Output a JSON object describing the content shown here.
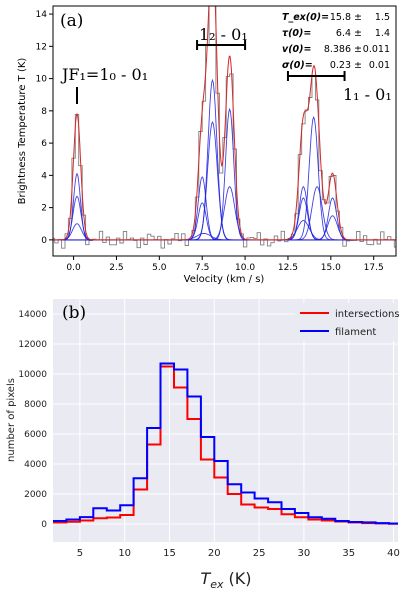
{
  "colors": {
    "panel_a_background": "#ffffff",
    "panel_b_background": "#eaeaf2",
    "observed": "#7f7f7f",
    "total_fit": "#d62728",
    "components": "#1f1fdf",
    "zero_line": "#cc2222",
    "intersections": "#ff0000",
    "filament": "#0000ff"
  },
  "chart_data": [
    {
      "type": "line",
      "panel_label": "(a)",
      "xlabel": "Velocity (km / s)",
      "ylabel": "Brightness Temperature T (K)",
      "xlim": [
        -1.2,
        18.8
      ],
      "ylim": [
        -1,
        14.5
      ],
      "xticks": [
        0.0,
        2.5,
        5.0,
        7.5,
        10.0,
        12.5,
        15.0,
        17.5
      ],
      "xtick_labels": [
        "0.0",
        "2.5",
        "5.0",
        "7.5",
        "10.0",
        "12.5",
        "15.0",
        "17.5"
      ],
      "yticks": [
        0,
        2,
        4,
        6,
        8,
        10,
        12,
        14
      ],
      "ytick_labels": [
        "0",
        "2",
        "4",
        "6",
        "8",
        "10",
        "12",
        "14"
      ],
      "grid": false,
      "channel_width": 0.2,
      "noise_amplitude": 0.55,
      "hyperfine_groups": [
        {
          "label": "JF₁=1₀ - 0₁",
          "bracket_range": [
            0.2,
            0.2
          ]
        },
        {
          "label": "1₂ - 0₁",
          "bracket_range": [
            7.2,
            10.0
          ]
        },
        {
          "label": "1₁ - 0₁",
          "bracket_range": [
            12.5,
            15.8
          ]
        }
      ],
      "components": [
        {
          "center": 0.2,
          "amplitude": 4.1,
          "sigma": 0.2
        },
        {
          "center": 0.2,
          "amplitude": 2.7,
          "sigma": 0.23
        },
        {
          "center": 0.2,
          "amplitude": 1.0,
          "sigma": 0.26
        },
        {
          "center": 7.5,
          "amplitude": 3.9,
          "sigma": 0.23
        },
        {
          "center": 7.5,
          "amplitude": 2.3,
          "sigma": 0.24
        },
        {
          "center": 7.6,
          "amplitude": 0.4,
          "sigma": 0.4
        },
        {
          "center": 8.1,
          "amplitude": 9.9,
          "sigma": 0.26
        },
        {
          "center": 8.1,
          "amplitude": 7.3,
          "sigma": 0.28
        },
        {
          "center": 9.1,
          "amplitude": 8.1,
          "sigma": 0.24
        },
        {
          "center": 9.1,
          "amplitude": 3.3,
          "sigma": 0.3
        },
        {
          "center": 13.4,
          "amplitude": 3.3,
          "sigma": 0.24
        },
        {
          "center": 13.4,
          "amplitude": 2.6,
          "sigma": 0.25
        },
        {
          "center": 13.4,
          "amplitude": 1.2,
          "sigma": 0.34
        },
        {
          "center": 14.0,
          "amplitude": 7.6,
          "sigma": 0.26
        },
        {
          "center": 14.2,
          "amplitude": 3.3,
          "sigma": 0.3
        },
        {
          "center": 15.1,
          "amplitude": 2.6,
          "sigma": 0.24
        },
        {
          "center": 15.1,
          "amplitude": 1.5,
          "sigma": 0.28
        }
      ],
      "fit_parameters": [
        {
          "name": "T_ex(0)=",
          "value": "15.8 ±",
          "error": "1.5"
        },
        {
          "name": "τ(0)=",
          "value": "6.4 ±",
          "error": "1.4"
        },
        {
          "name": "v(0)=",
          "value": "8.386 ±",
          "error": "0.011"
        },
        {
          "name": "σ(0)=",
          "value": "0.23 ±",
          "error": "0.01"
        }
      ]
    },
    {
      "type": "line",
      "panel_label": "(b)",
      "xlabel": "T_ex (K)",
      "ylabel": "number of pixels",
      "xlim": [
        2,
        40.5
      ],
      "ylim": [
        -1200,
        15000
      ],
      "xticks": [
        5,
        10,
        15,
        20,
        25,
        30,
        35,
        40
      ],
      "xtick_labels": [
        "5",
        "10",
        "15",
        "20",
        "25",
        "30",
        "35",
        "40"
      ],
      "yticks": [
        0,
        2000,
        4000,
        6000,
        8000,
        10000,
        12000,
        14000
      ],
      "ytick_labels": [
        "0",
        "2000",
        "4000",
        "6000",
        "8000",
        "10000",
        "12000",
        "14000"
      ],
      "grid": true,
      "legend": {
        "placement": "top-right"
      },
      "bin_edges": [
        2.0,
        3.5,
        5.0,
        6.5,
        8.0,
        9.5,
        11.0,
        12.5,
        14.0,
        15.5,
        17.0,
        18.5,
        20.0,
        21.5,
        23.0,
        24.5,
        26.0,
        27.5,
        29.0,
        30.5,
        32.0,
        33.5,
        35.0,
        36.5,
        38.0,
        39.5,
        40.5
      ],
      "series": [
        {
          "name": "intersections",
          "values": [
            100,
            150,
            230,
            380,
            430,
            600,
            2300,
            5300,
            10500,
            9100,
            7000,
            4300,
            3100,
            2000,
            1300,
            1100,
            1000,
            650,
            450,
            300,
            230,
            170,
            100,
            60,
            40,
            20
          ]
        },
        {
          "name": "filament",
          "values": [
            200,
            300,
            460,
            1050,
            900,
            1250,
            3050,
            6400,
            10700,
            10300,
            8500,
            5800,
            4200,
            2650,
            2100,
            1700,
            1450,
            1000,
            730,
            450,
            350,
            200,
            130,
            110,
            60,
            30
          ]
        }
      ]
    }
  ]
}
